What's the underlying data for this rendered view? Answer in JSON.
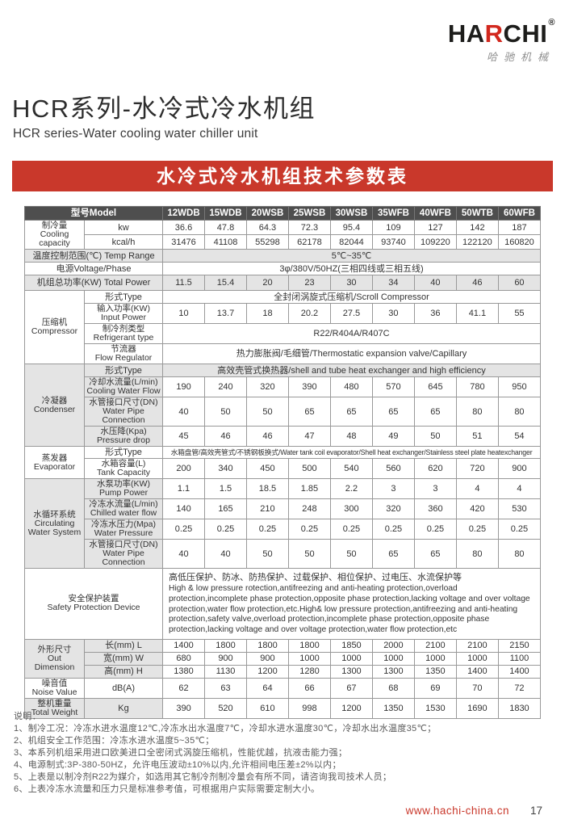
{
  "colors": {
    "accent_red": "#c9382b",
    "header_dark": "#4e4e4e",
    "shade_gray": "#e4e4e4"
  },
  "brand": {
    "part_ha": "HA",
    "part_r": "R",
    "part_chi": "CHI",
    "reg": "®",
    "sub_cn": "哈驰机械"
  },
  "page": {
    "title_cn": "HCR系列-水冷式冷水机组",
    "title_en": "HCR series-Water cooling water chiller unit",
    "banner": "水冷式冷水机组技术参数表",
    "footer_url": "www.hachi-china.cn",
    "page_number": "17"
  },
  "table": {
    "header": {
      "label": "型号Model",
      "models": [
        "12WDB",
        "15WDB",
        "20WSB",
        "25WSB",
        "30WSB",
        "35WFB",
        "40WFB",
        "50WTB",
        "60WFB"
      ]
    },
    "sections": [
      {
        "label": [
          "制冷量",
          "Cooling capacity"
        ],
        "merged": false,
        "shaded": false,
        "rows": [
          {
            "label": [
              "kw"
            ],
            "values": [
              "36.6",
              "47.8",
              "64.3",
              "72.3",
              "95.4",
              "109",
              "127",
              "142",
              "187"
            ]
          },
          {
            "label": [
              "kcal/h"
            ],
            "values": [
              "31476",
              "41108",
              "55298",
              "62178",
              "82044",
              "93740",
              "109220",
              "122120",
              "160820"
            ]
          }
        ]
      },
      {
        "label": [
          "温度控制范围(℃) Temp Range"
        ],
        "merged": true,
        "shaded": true,
        "rows": [
          {
            "span": "5℃~35℃"
          }
        ]
      },
      {
        "label": [
          "电源Voltage/Phase"
        ],
        "merged": true,
        "shaded": false,
        "rows": [
          {
            "span": "3φ/380V/50HZ(三相四线或三相五线)"
          }
        ]
      },
      {
        "label": [
          "机组总功率(KW) Total Power"
        ],
        "merged": true,
        "shaded": true,
        "rows": [
          {
            "values": [
              "11.5",
              "15.4",
              "20",
              "23",
              "30",
              "34",
              "40",
              "46",
              "60"
            ]
          }
        ]
      },
      {
        "label": [
          "压缩机",
          "Compressor"
        ],
        "merged": false,
        "shaded": false,
        "rows": [
          {
            "label": [
              "形式Type"
            ],
            "span": "全封闭涡旋式压缩机/Scroll Compressor"
          },
          {
            "label": [
              "输入功率(KW)",
              "Input Power"
            ],
            "values": [
              "10",
              "13.7",
              "18",
              "20.2",
              "27.5",
              "30",
              "36",
              "41.1",
              "55"
            ]
          },
          {
            "label": [
              "制冷剂类型",
              "Refrigerant type"
            ],
            "span": "R22/R404A/R407C"
          },
          {
            "label": [
              "节流器",
              "Flow Regulator"
            ],
            "span": "热力膨胀阀/毛细管/Thermostatic expansion valve/Capillary"
          }
        ]
      },
      {
        "label": [
          "冷凝器",
          "Condenser"
        ],
        "merged": false,
        "shaded": true,
        "rows": [
          {
            "label": [
              "形式Type"
            ],
            "span": "高效壳管式换热器/shell and tube heat exchanger and high efficiency"
          },
          {
            "label": [
              "冷却水流量(L/min)",
              "Cooling Water Flow"
            ],
            "values": [
              "190",
              "240",
              "320",
              "390",
              "480",
              "570",
              "645",
              "780",
              "950"
            ]
          },
          {
            "label": [
              "水管接口尺寸(DN)",
              "Water Pipe Connection"
            ],
            "values": [
              "40",
              "50",
              "50",
              "65",
              "65",
              "65",
              "65",
              "80",
              "80"
            ]
          },
          {
            "label": [
              "水压降(Kpa)",
              "Pressure drop"
            ],
            "values": [
              "45",
              "46",
              "46",
              "47",
              "48",
              "49",
              "50",
              "51",
              "54"
            ]
          }
        ]
      },
      {
        "label": [
          "蒸发器",
          "Evaporator"
        ],
        "merged": false,
        "shaded": false,
        "rows": [
          {
            "label": [
              "形式Type"
            ],
            "span": "水箱盘管/高效壳管式/不锈钢板换式/Water tank coil evaporator/Shell heat exchanger/Stainless steel plate heatexchanger",
            "small": true
          },
          {
            "label": [
              "水箱容量(L)",
              "Tank Capacity"
            ],
            "values": [
              "200",
              "340",
              "450",
              "500",
              "540",
              "560",
              "620",
              "720",
              "900"
            ]
          }
        ]
      },
      {
        "label": [
          "水循环系统",
          "Circulating",
          "Water System"
        ],
        "merged": false,
        "shaded": true,
        "rows": [
          {
            "label": [
              "水泵功率(KW)",
              "Pump Power"
            ],
            "values": [
              "1.1",
              "1.5",
              "18.5",
              "1.85",
              "2.2",
              "3",
              "3",
              "4",
              "4"
            ]
          },
          {
            "label": [
              "冷冻水流量(L/min)",
              "Chilled water flow"
            ],
            "values": [
              "140",
              "165",
              "210",
              "248",
              "300",
              "320",
              "360",
              "420",
              "530"
            ]
          },
          {
            "label": [
              "冷冻水压力(Mpa)",
              "Water Pressure"
            ],
            "values": [
              "0.25",
              "0.25",
              "0.25",
              "0.25",
              "0.25",
              "0.25",
              "0.25",
              "0.25",
              "0.25"
            ]
          },
          {
            "label": [
              "水管接口尺寸(DN)",
              "Water Pipe Connection"
            ],
            "values": [
              "40",
              "40",
              "50",
              "50",
              "50",
              "65",
              "65",
              "80",
              "80"
            ]
          }
        ]
      },
      {
        "label": [
          "安全保护装置",
          "Safety Protection Device"
        ],
        "merged": true,
        "shaded": false,
        "rows": [
          {
            "safety_cn": "高低压保护、防冰、防热保护、过载保护、相位保护、过电压、水流保护等",
            "safety_en": "High & low pressure rotection,antifreezing and anti-heating protection,overload protection,incomplete phase protection,opposite phase protection,lacking voltage and over voltage protection,water flow protection,etc.High& low pressure protection,antifreezing and anti-heating protection,safety valve,overload protection,incomplete phase protection,opposite phase protection,lacking voltage and over voltage protection,water flow protection,etc"
          }
        ]
      },
      {
        "label": [
          "外形尺寸",
          "Out Dimension"
        ],
        "merged": false,
        "shaded": true,
        "rows": [
          {
            "label": [
              "长(mm) L"
            ],
            "values": [
              "1400",
              "1800",
              "1800",
              "1800",
              "1850",
              "2000",
              "2100",
              "2100",
              "2150"
            ]
          },
          {
            "label": [
              "宽(mm) W"
            ],
            "values": [
              "680",
              "900",
              "900",
              "1000",
              "1000",
              "1000",
              "1000",
              "1000",
              "1100"
            ]
          },
          {
            "label": [
              "高(mm) H"
            ],
            "values": [
              "1380",
              "1130",
              "1200",
              "1280",
              "1300",
              "1300",
              "1350",
              "1400",
              "1400"
            ]
          }
        ]
      },
      {
        "label": [
          "噪音值",
          "Noise Value"
        ],
        "merged": false,
        "shaded": false,
        "rows": [
          {
            "label": [
              "dB(A)"
            ],
            "values": [
              "62",
              "63",
              "64",
              "66",
              "67",
              "68",
              "69",
              "70",
              "72"
            ]
          }
        ]
      },
      {
        "label": [
          "整机重量",
          "Total Weight"
        ],
        "merged": false,
        "shaded": true,
        "rows": [
          {
            "label": [
              "Kg"
            ],
            "values": [
              "390",
              "520",
              "610",
              "998",
              "1200",
              "1350",
              "1530",
              "1690",
              "1830"
            ]
          }
        ]
      }
    ]
  },
  "notes": {
    "heading": "说明：",
    "lines": [
      "1、制冷工况：冷冻水进水温度12℃,冷冻水出水温度7℃，冷却水进水温度30℃，冷却水出水温度35℃；",
      "2、机组安全工作范围：冷冻水进水温度5~35℃；",
      "3、本系列机组采用进口欧美进口全密闭式涡旋压缩机，性能优越，抗液击能力强；",
      "4、电源制式:3P-380-50HZ，允许电压波动±10%以内,允许相间电压差±2%以内；",
      "5、上表是以制冷剂R22为媒介，如选用其它制冷剂制冷量会有所不同，请咨询我司技术人员；",
      "6、上表冷冻水流量和压力只是标准参考值，可根据用户实际需要定制大小。"
    ]
  }
}
